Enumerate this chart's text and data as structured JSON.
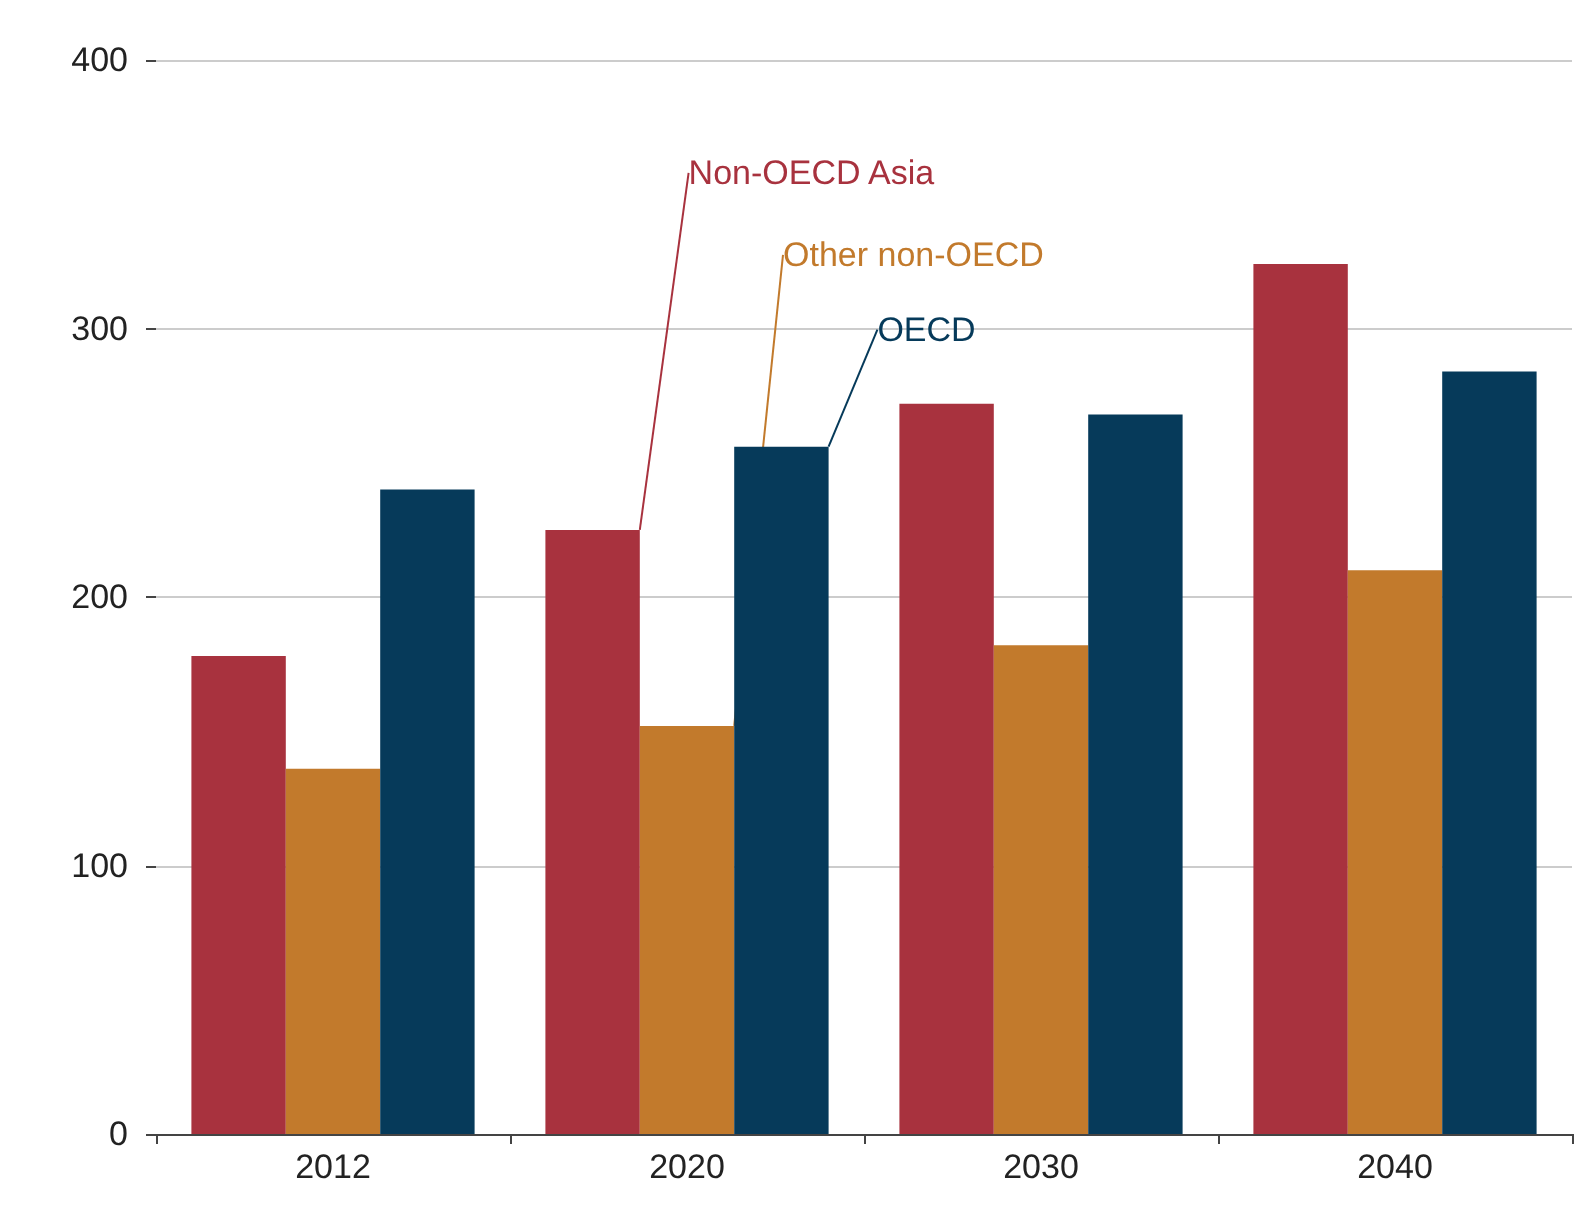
{
  "chart_data": {
    "type": "bar",
    "categories": [
      "2012",
      "2020",
      "2030",
      "2040"
    ],
    "series": [
      {
        "name": "Non-OECD Asia",
        "color": "#a8323e",
        "values": [
          178,
          225,
          272,
          324
        ]
      },
      {
        "name": "Other non-OECD",
        "color": "#c27a2c",
        "values": [
          136,
          152,
          182,
          210
        ]
      },
      {
        "name": "OECD",
        "color": "#063a5a",
        "values": [
          240,
          256,
          268,
          284
        ]
      }
    ],
    "ylim": [
      0,
      400
    ],
    "yticks": [
      0,
      100,
      200,
      300,
      400
    ],
    "grid": "y",
    "legend": false
  }
}
